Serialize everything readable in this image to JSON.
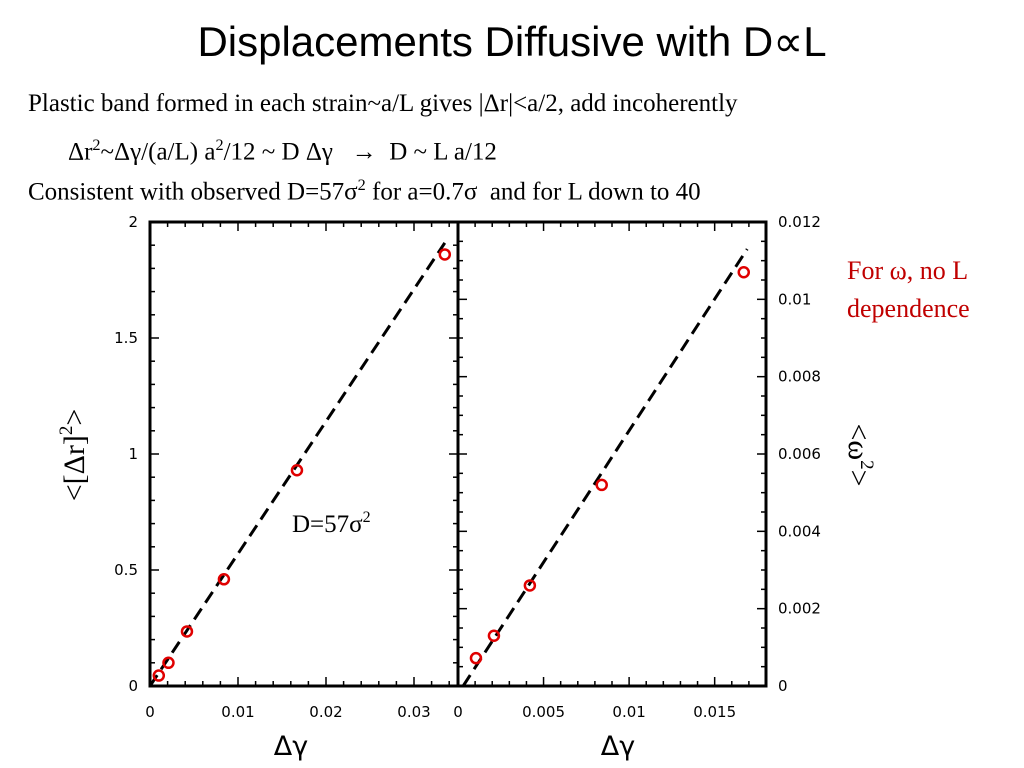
{
  "title": "Displacements Diffusive with D∝L",
  "text": {
    "line1": "Plastic band formed in each strain~a/L gives |Δr|<a/2, add incoherently",
    "line2_a": "Δr",
    "line2_sup1": "2",
    "line2_b": "~Δγ/(a/L) a",
    "line2_sup2": "2",
    "line2_c": "/12 ~ D Δγ   →  D ~ L a/12",
    "line3_a": "Consistent with observed D=57σ",
    "line3_sup": "2",
    "line3_b": " for a=0.7σ  and for L down to 40",
    "note_line1": "For ω, no L",
    "note_line2": "dependence"
  },
  "colors": {
    "marker": "#e00000",
    "note": "#c00000",
    "axis": "#000000"
  },
  "chart_data": [
    {
      "type": "scatter",
      "xlabel": "Δγ",
      "ylabel_a": "<[Δr]",
      "ylabel_sup": "2",
      "ylabel_b": ">",
      "xlim": [
        0,
        0.035
      ],
      "ylim": [
        0,
        2
      ],
      "xticks": [
        0,
        0.01,
        0.02,
        0.03
      ],
      "xtick_labels": [
        "0",
        "0.01",
        "0.02",
        "0.03"
      ],
      "yticks": [
        0,
        0.5,
        1,
        1.5,
        2
      ],
      "ytick_labels": [
        "0",
        "0.5",
        "1",
        "1.5",
        "2"
      ],
      "y_axis_side": "left",
      "points": [
        {
          "x": 0.001,
          "y": 0.045
        },
        {
          "x": 0.0021,
          "y": 0.1
        },
        {
          "x": 0.0042,
          "y": 0.235
        },
        {
          "x": 0.0084,
          "y": 0.46
        },
        {
          "x": 0.0167,
          "y": 0.93
        },
        {
          "x": 0.0335,
          "y": 1.86
        }
      ],
      "fit_line": [
        {
          "x": 0,
          "y": 0
        },
        {
          "x": 0.0335,
          "y": 1.91
        }
      ],
      "annotation_a": "D=57σ",
      "annotation_sup": "2",
      "grid": false
    },
    {
      "type": "scatter",
      "xlabel": "Δγ",
      "ylabel_a": "<ω",
      "ylabel_sup": "2",
      "ylabel_b": ">",
      "xlim": [
        0,
        0.018
      ],
      "ylim": [
        0,
        0.012
      ],
      "xticks": [
        0,
        0.005,
        0.01,
        0.015
      ],
      "xtick_labels": [
        "0",
        "0.005",
        "0.01",
        "0.015"
      ],
      "yticks": [
        0,
        0.002,
        0.004,
        0.006,
        0.008,
        0.01,
        0.012
      ],
      "ytick_labels": [
        "0",
        "0.002",
        "0.004",
        "0.006",
        "0.008",
        "0.01",
        "0.012"
      ],
      "y_axis_side": "right",
      "points": [
        {
          "x": 0.00105,
          "y": 0.00072
        },
        {
          "x": 0.0021,
          "y": 0.0013
        },
        {
          "x": 0.0042,
          "y": 0.0026
        },
        {
          "x": 0.0084,
          "y": 0.0052
        },
        {
          "x": 0.0167,
          "y": 0.0107
        }
      ],
      "fit_line": [
        {
          "x": 0.0003,
          "y": 0
        },
        {
          "x": 0.0169,
          "y": 0.0113
        }
      ],
      "grid": false
    }
  ]
}
